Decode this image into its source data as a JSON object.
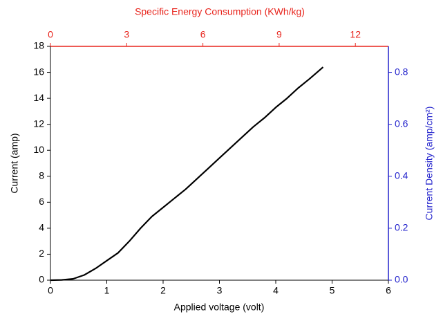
{
  "chart_data": {
    "type": "line",
    "xlabel": "Applied voltage (volt)",
    "ylabel": "Current (amp)",
    "x2label": "Specific Energy Consumption (KWh/kg)",
    "y2label": "Current Density (amp/cm²)",
    "x": [
      0,
      0.2,
      0.4,
      0.6,
      0.8,
      1.0,
      1.2,
      1.4,
      1.6,
      1.8,
      2.0,
      2.2,
      2.4,
      2.6,
      2.8,
      3.0,
      3.2,
      3.4,
      3.6,
      3.8,
      4.0,
      4.2,
      4.4,
      4.6,
      4.84
    ],
    "values": [
      0,
      0.02,
      0.1,
      0.4,
      0.9,
      1.5,
      2.1,
      3.0,
      4.0,
      4.9,
      5.6,
      6.3,
      7.0,
      7.8,
      8.6,
      9.4,
      10.2,
      11.0,
      11.8,
      12.5,
      13.3,
      14.0,
      14.8,
      15.5,
      16.4
    ],
    "color": "#000000",
    "xlim": [
      0,
      6
    ],
    "xticks": [
      0,
      1,
      2,
      3,
      4,
      5,
      6
    ],
    "ylim": [
      0,
      18
    ],
    "yticks": [
      0,
      2,
      4,
      6,
      8,
      10,
      12,
      14,
      16,
      18
    ],
    "x2lim": [
      0,
      13.3
    ],
    "x2ticks": [
      0,
      3,
      6,
      9,
      12
    ],
    "x2color": "#e8241c",
    "y2lim": [
      0,
      0.9
    ],
    "y2ticks": [
      {
        "value": 0,
        "label": "0.0"
      },
      0.2,
      0.4,
      0.6,
      0.8
    ],
    "y2color": "#2222cc"
  }
}
